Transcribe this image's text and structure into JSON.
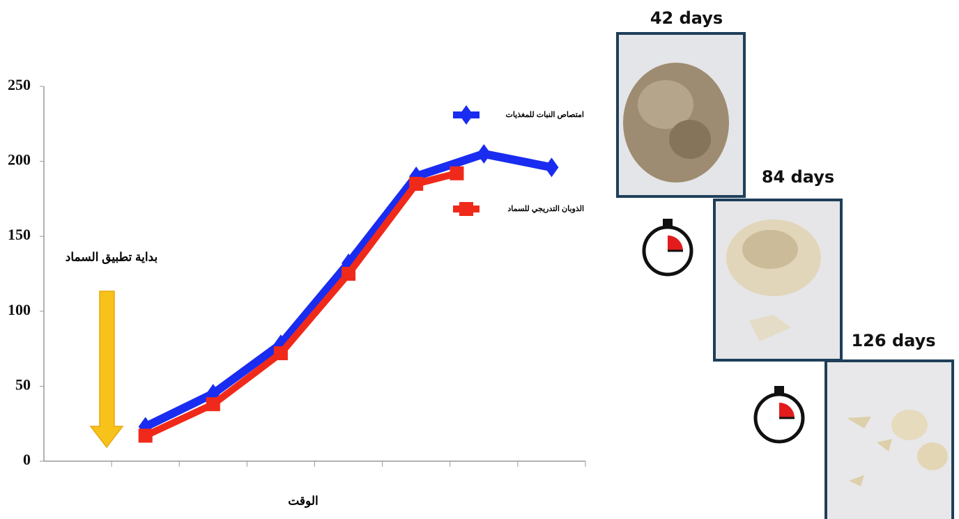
{
  "chart_data": {
    "type": "line",
    "xlabel": "الوقت",
    "annotation": "بداية تطبيق السماد",
    "xlim": [
      0,
      8
    ],
    "xticks": [
      1,
      2,
      3,
      4,
      5,
      6,
      7,
      8
    ],
    "ylim": [
      0,
      250
    ],
    "yticks": [
      0,
      50,
      100,
      150,
      200,
      250
    ],
    "series": [
      {
        "name": "امتصاص النبات للمغذيات",
        "color": "#1a2cf0",
        "marker": "diamond",
        "x": [
          1.5,
          2.5,
          3.5,
          4.5,
          5.5,
          6.5,
          7.5
        ],
        "values": [
          23,
          45,
          78,
          132,
          190,
          205,
          196
        ]
      },
      {
        "name": "الذوبان التدريجي للسماد",
        "color": "#f02a1a",
        "marker": "square",
        "x": [
          1.5,
          2.5,
          3.5,
          4.5,
          5.5,
          6.1
        ],
        "values": [
          17,
          38,
          72,
          125,
          185,
          192
        ]
      }
    ]
  },
  "panels": [
    {
      "label": "42 days"
    },
    {
      "label": "84 days"
    },
    {
      "label": "126 days"
    }
  ]
}
